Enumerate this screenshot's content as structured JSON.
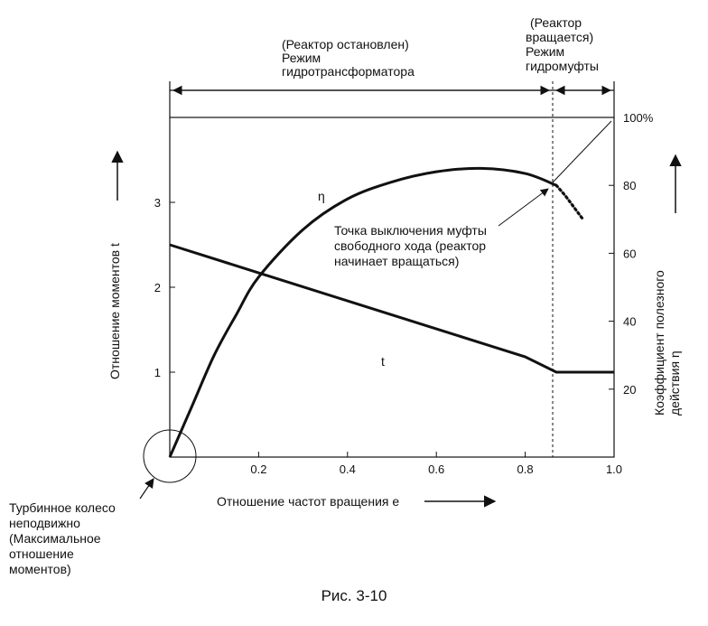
{
  "chart_data": {
    "type": "line",
    "caption": "Рис. 3-10",
    "xlabel": "Отношение частот вращения e",
    "ylabel_left": "Отношение моментов t",
    "ylabel_right_line1": "Коэффициент полезного",
    "ylabel_right_line2": "действия η",
    "x_ticks": [
      "0.2",
      "0.4",
      "0.6",
      "0.8",
      "1.0"
    ],
    "x_tick_values": [
      0.2,
      0.4,
      0.6,
      0.8,
      1.0
    ],
    "left_ticks": [
      "1",
      "2",
      "3"
    ],
    "left_tick_values": [
      1,
      2,
      3
    ],
    "right_ticks": [
      "20",
      "40",
      "60",
      "80",
      "100%"
    ],
    "right_tick_values": [
      20,
      40,
      60,
      80,
      100
    ],
    "xlim": [
      0,
      1.0
    ],
    "ylim_left": [
      0,
      4
    ],
    "ylim_right": [
      0,
      100
    ],
    "grid": false,
    "series": [
      {
        "name": "t",
        "axis": "left",
        "x": [
          0,
          0.2,
          0.4,
          0.6,
          0.8,
          0.87,
          1.0
        ],
        "values": [
          2.5,
          2.17,
          1.84,
          1.51,
          1.18,
          1.0,
          1.0
        ]
      },
      {
        "name": "η",
        "axis": "right",
        "x": [
          0,
          0.05,
          0.1,
          0.15,
          0.2,
          0.3,
          0.4,
          0.5,
          0.6,
          0.7,
          0.8,
          0.87
        ],
        "values": [
          0,
          15,
          30,
          42,
          53,
          67,
          76,
          81,
          84,
          85,
          83.5,
          80
        ]
      },
      {
        "name": "η",
        "axis": "right",
        "dotted": true,
        "x": [
          0.87,
          0.89,
          0.91,
          0.93
        ],
        "values": [
          80,
          77,
          73.5,
          70
        ]
      }
    ],
    "annotations": {
      "mode1_line1": "(Реактор остановлен)",
      "mode1_line2": "Режим",
      "mode1_line3": "гидротрансформатора",
      "mode2_line1": "(Реактор",
      "mode2_line2": "вращается)",
      "mode2_line3": "Режим",
      "mode2_line4": "гидромуфты",
      "point_line1": "Точка выключения муфты",
      "point_line2": "свободного хода (реактор",
      "point_line3": "начинает вращаться)",
      "turbine_line1": "Турбинное колесо",
      "turbine_line2": "неподвижно",
      "turbine_line3": "(Максимальное",
      "turbine_line4": "отношение",
      "turbine_line5": "моментов)"
    },
    "switch_point_x": 0.87,
    "colors": {
      "line": "#111111",
      "background": "#ffffff"
    }
  }
}
